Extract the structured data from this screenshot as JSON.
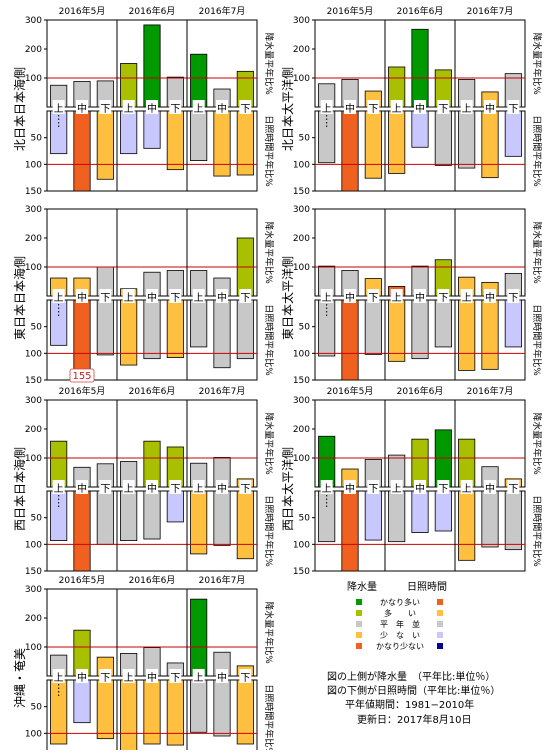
{
  "colors": {
    "rain": {
      "much_more": "#009900",
      "more": "#a8c000",
      "normal": "#c8c8c8",
      "less": "#ffc040",
      "much_less": "#f06020"
    },
    "sun": {
      "much_more": "#f06020",
      "more": "#ffc040",
      "normal": "#c8c8c8",
      "less": "#c8c8ff",
      "much_less": "#000099"
    },
    "reference_line": "#cc0000"
  },
  "chart_data": [
    {
      "type": "bar",
      "region": "北日本日本海側",
      "months": [
        "2016年5月",
        "2016年6月",
        "2016年7月"
      ],
      "categories": [
        "上",
        "中",
        "下",
        "上",
        "中",
        "下",
        "上",
        "中",
        "下"
      ],
      "rain_label": "降水量平年比%",
      "sun_label": "日照時間平年比%",
      "rain_ticks": [
        "300",
        "200",
        "100"
      ],
      "sun_ticks": [
        "50",
        "100",
        "150"
      ],
      "rain_ylim": [
        0,
        300
      ],
      "sun_ylim": [
        0,
        150
      ],
      "reference": 100,
      "rain_values": [
        75,
        88,
        90,
        150,
        283,
        103,
        182,
        62,
        123
      ],
      "rain_levels": [
        "normal",
        "normal",
        "normal",
        "more",
        "much_more",
        "normal",
        "much_more",
        "normal",
        "more"
      ],
      "sun_values": [
        80,
        150,
        128,
        80,
        70,
        110,
        93,
        122,
        120
      ],
      "sun_levels": [
        "less",
        "much_more",
        "more",
        "less",
        "less",
        "more",
        "normal",
        "more",
        "more"
      ],
      "sun_overflow_label": ""
    },
    {
      "type": "bar",
      "region": "北日本太平洋側",
      "months": [
        "2016年5月",
        "2016年6月",
        "2016年7月"
      ],
      "categories": [
        "上",
        "中",
        "下",
        "上",
        "中",
        "下",
        "上",
        "中",
        "下"
      ],
      "rain_label": "降水量平年比%",
      "sun_label": "日照時間平年比%",
      "rain_ticks": [
        "300",
        "200",
        "100"
      ],
      "sun_ticks": [
        "50",
        "100",
        "150"
      ],
      "rain_ylim": [
        0,
        300
      ],
      "sun_ylim": [
        0,
        150
      ],
      "reference": 100,
      "rain_values": [
        80,
        95,
        55,
        138,
        268,
        128,
        95,
        52,
        115
      ],
      "rain_levels": [
        "normal",
        "normal",
        "less",
        "more",
        "much_more",
        "more",
        "normal",
        "less",
        "normal"
      ],
      "sun_values": [
        97,
        150,
        126,
        117,
        68,
        102,
        107,
        125,
        85
      ],
      "sun_levels": [
        "normal",
        "much_more",
        "more",
        "more",
        "less",
        "normal",
        "normal",
        "more",
        "less"
      ],
      "sun_overflow_label": ""
    },
    {
      "type": "bar",
      "region": "東日本日本海側",
      "months": [
        "",
        "",
        ""
      ],
      "categories": [
        "上",
        "中",
        "下",
        "上",
        "中",
        "下",
        "上",
        "中",
        "下"
      ],
      "rain_label": "降水量平年比%",
      "sun_label": "日照時間平年比%",
      "rain_ticks": [
        "300",
        "200",
        "100"
      ],
      "sun_ticks": [
        "50",
        "100",
        "150"
      ],
      "rain_ylim": [
        0,
        300
      ],
      "sun_ylim": [
        0,
        150
      ],
      "reference": 100,
      "rain_values": [
        62,
        62,
        100,
        25,
        82,
        88,
        88,
        62,
        200
      ],
      "rain_levels": [
        "less",
        "less",
        "normal",
        "less",
        "normal",
        "normal",
        "normal",
        "normal",
        "more"
      ],
      "sun_values": [
        85,
        155,
        103,
        122,
        110,
        108,
        88,
        127,
        110
      ],
      "sun_levels": [
        "less",
        "much_more",
        "normal",
        "more",
        "normal",
        "more",
        "normal",
        "normal",
        "normal"
      ],
      "sun_overflow_label": "155"
    },
    {
      "type": "bar",
      "region": "東日本太平洋側",
      "months": [
        "",
        "",
        ""
      ],
      "categories": [
        "上",
        "中",
        "下",
        "上",
        "中",
        "下",
        "上",
        "中",
        "下"
      ],
      "rain_label": "降水量平年比%",
      "sun_label": "日照時間平年比%",
      "rain_ticks": [
        "300",
        "200",
        "100"
      ],
      "sun_ticks": [
        "50",
        "100",
        "150"
      ],
      "rain_ylim": [
        0,
        300
      ],
      "sun_ylim": [
        0,
        150
      ],
      "reference": 100,
      "rain_values": [
        103,
        88,
        60,
        33,
        103,
        125,
        65,
        47,
        78
      ],
      "rain_levels": [
        "normal",
        "normal",
        "less",
        "much_less",
        "normal",
        "more",
        "less",
        "less",
        "normal"
      ],
      "sun_values": [
        105,
        150,
        102,
        115,
        110,
        88,
        132,
        130,
        88
      ],
      "sun_levels": [
        "normal",
        "much_more",
        "normal",
        "more",
        "normal",
        "normal",
        "more",
        "more",
        "less"
      ],
      "sun_overflow_label": ""
    },
    {
      "type": "bar",
      "region": "西日本日本海側",
      "months": [
        "2016年5月",
        "2016年6月",
        "2016年7月"
      ],
      "categories": [
        "上",
        "中",
        "下",
        "上",
        "中",
        "下",
        "上",
        "中",
        "下"
      ],
      "rain_label": "降水量平年比%",
      "sun_label": "日照時間平年比%",
      "rain_ticks": [
        "300",
        "200",
        "100"
      ],
      "sun_ticks": [
        "50",
        "100",
        "150"
      ],
      "rain_ylim": [
        0,
        300
      ],
      "sun_ylim": [
        0,
        150
      ],
      "reference": 100,
      "rain_values": [
        158,
        68,
        80,
        88,
        158,
        138,
        82,
        102,
        28
      ],
      "rain_levels": [
        "more",
        "normal",
        "normal",
        "normal",
        "more",
        "more",
        "normal",
        "normal",
        "less"
      ],
      "sun_values": [
        93,
        150,
        100,
        93,
        90,
        58,
        118,
        102,
        127
      ],
      "sun_levels": [
        "less",
        "much_more",
        "normal",
        "normal",
        "normal",
        "less",
        "more",
        "normal",
        "more"
      ],
      "sun_overflow_label": ""
    },
    {
      "type": "bar",
      "region": "西日本太平洋側",
      "months": [
        "2016年5月",
        "2016年6月",
        "2016年7月"
      ],
      "categories": [
        "上",
        "中",
        "下",
        "上",
        "中",
        "下",
        "上",
        "中",
        "下"
      ],
      "rain_label": "降水量平年比%",
      "sun_label": "日照時間平年比%",
      "rain_ticks": [
        "300",
        "200",
        "100"
      ],
      "sun_ticks": [
        "50",
        "100",
        "150"
      ],
      "rain_ylim": [
        0,
        300
      ],
      "sun_ylim": [
        0,
        150
      ],
      "reference": 100,
      "rain_values": [
        175,
        62,
        95,
        110,
        165,
        197,
        165,
        70,
        28
      ],
      "rain_levels": [
        "much_more",
        "less",
        "normal",
        "normal",
        "more",
        "much_more",
        "more",
        "normal",
        "less"
      ],
      "sun_values": [
        95,
        150,
        92,
        95,
        78,
        75,
        130,
        105,
        110
      ],
      "sun_levels": [
        "normal",
        "much_more",
        "less",
        "normal",
        "less",
        "less",
        "more",
        "normal",
        "normal"
      ],
      "sun_overflow_label": ""
    },
    {
      "type": "bar",
      "region": "沖縄・奄美",
      "months": [
        "2016年5月",
        "2016年6月",
        "2016年7月"
      ],
      "categories": [
        "上",
        "中",
        "下",
        "上",
        "中",
        "下",
        "上",
        "中",
        "下"
      ],
      "rain_label": "降水量平年比%",
      "sun_label": "日照時間平年比%",
      "rain_ticks": [
        "300",
        "200",
        "100"
      ],
      "sun_ticks": [
        "50",
        "100",
        "150"
      ],
      "rain_ylim": [
        0,
        300
      ],
      "sun_ylim": [
        0,
        150
      ],
      "reference": 100,
      "rain_values": [
        72,
        158,
        65,
        78,
        98,
        45,
        265,
        82,
        35
      ],
      "rain_levels": [
        "normal",
        "more",
        "less",
        "normal",
        "normal",
        "normal",
        "much_more",
        "normal",
        "less"
      ],
      "sun_values": [
        120,
        80,
        110,
        132,
        120,
        122,
        98,
        105,
        120
      ],
      "sun_levels": [
        "more",
        "less",
        "more",
        "more",
        "more",
        "more",
        "normal",
        "normal",
        "more"
      ],
      "sun_overflow_label": ""
    }
  ],
  "legend": {
    "header_rain": "降水量",
    "header_sun": "日照時間",
    "rows": [
      {
        "label": "かなり多い",
        "rain": "#009900",
        "sun": "#f06020"
      },
      {
        "label": "多　　い",
        "rain": "#a8c000",
        "sun": "#ffc040"
      },
      {
        "label": "平　年　並",
        "rain": "#c8c8c8",
        "sun": "#c8c8c8"
      },
      {
        "label": "少　な　い",
        "rain": "#ffc040",
        "sun": "#c8c8ff"
      },
      {
        "label": "かなり少ない",
        "rain": "#f06020",
        "sun": "#000099"
      }
    ]
  },
  "notes": {
    "line1": "図の上側が降水量　（平年比:単位％）",
    "line2": "図の下側が日照時間（平年比:単位％）",
    "line3": "平年値期間：1981−2010年",
    "line4": "更新日：2017年8月10日"
  }
}
